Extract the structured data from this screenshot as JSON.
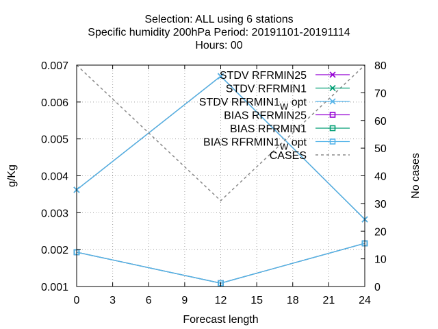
{
  "chart_data": {
    "type": "line",
    "title_lines": [
      "Selection: ALL using     6 stations",
      "Specific humidity 200hPa   Period: 20191101-20191114",
      "Hours:  00"
    ],
    "xlabel": "Forecast length",
    "ylabel": "g/Kg",
    "y2label": "No cases",
    "xlim": [
      0,
      24
    ],
    "ylim": [
      0.001,
      0.007
    ],
    "y2lim": [
      0,
      80
    ],
    "xticks": [
      "0",
      "3",
      "6",
      "9",
      "12",
      "15",
      "18",
      "21",
      "24"
    ],
    "yticks": [
      "0.001",
      "0.002",
      "0.003",
      "0.004",
      "0.005",
      "0.006",
      "0.007"
    ],
    "y2ticks": [
      "0",
      "10",
      "20",
      "30",
      "40",
      "50",
      "60",
      "70",
      "80"
    ],
    "grid": true,
    "legend_position": "top-right",
    "x": [
      0,
      12,
      24
    ],
    "series": [
      {
        "name": "STDV RFRMIN25",
        "label_main": "STDV RFRMIN25",
        "label_sub": "",
        "label_tail": "",
        "color": "#9400d3",
        "marker": "x",
        "axis": "y1",
        "values": [
          0.00362,
          0.0067,
          0.00282
        ]
      },
      {
        "name": "STDV RFRMIN1",
        "label_main": "STDV RFRMIN1",
        "label_sub": "",
        "label_tail": "",
        "color": "#009e73",
        "marker": "x",
        "axis": "y1",
        "values": [
          0.00362,
          0.0067,
          0.00282
        ]
      },
      {
        "name": "STDV RFRMIN1_W opt",
        "label_main": "STDV RFRMIN1",
        "label_sub": "W",
        "label_tail": "opt",
        "color": "#56b4e9",
        "marker": "x",
        "axis": "y1",
        "values": [
          0.00362,
          0.0067,
          0.00282
        ]
      },
      {
        "name": "BIAS RFRMIN25",
        "label_main": "BIAS RFRMIN25",
        "label_sub": "",
        "label_tail": "",
        "color": "#9400d3",
        "marker": "square",
        "axis": "y1",
        "values": [
          0.00193,
          0.00109,
          0.00217
        ]
      },
      {
        "name": "BIAS RFRMIN1",
        "label_main": "BIAS RFRMIN1",
        "label_sub": "",
        "label_tail": "",
        "color": "#009e73",
        "marker": "square",
        "axis": "y1",
        "values": [
          0.00193,
          0.00109,
          0.00217
        ]
      },
      {
        "name": "BIAS RFRMIN1_W opt",
        "label_main": "BIAS RFRMIN1",
        "label_sub": "W",
        "label_tail": "opt",
        "color": "#56b4e9",
        "marker": "square",
        "axis": "y1",
        "values": [
          0.00193,
          0.00109,
          0.00217
        ]
      },
      {
        "name": "CASES",
        "label_main": "CASES",
        "label_sub": "",
        "label_tail": "",
        "color": "#888888",
        "marker": "none",
        "dashed": true,
        "axis": "y2",
        "values": [
          80,
          31,
          80
        ]
      }
    ]
  }
}
